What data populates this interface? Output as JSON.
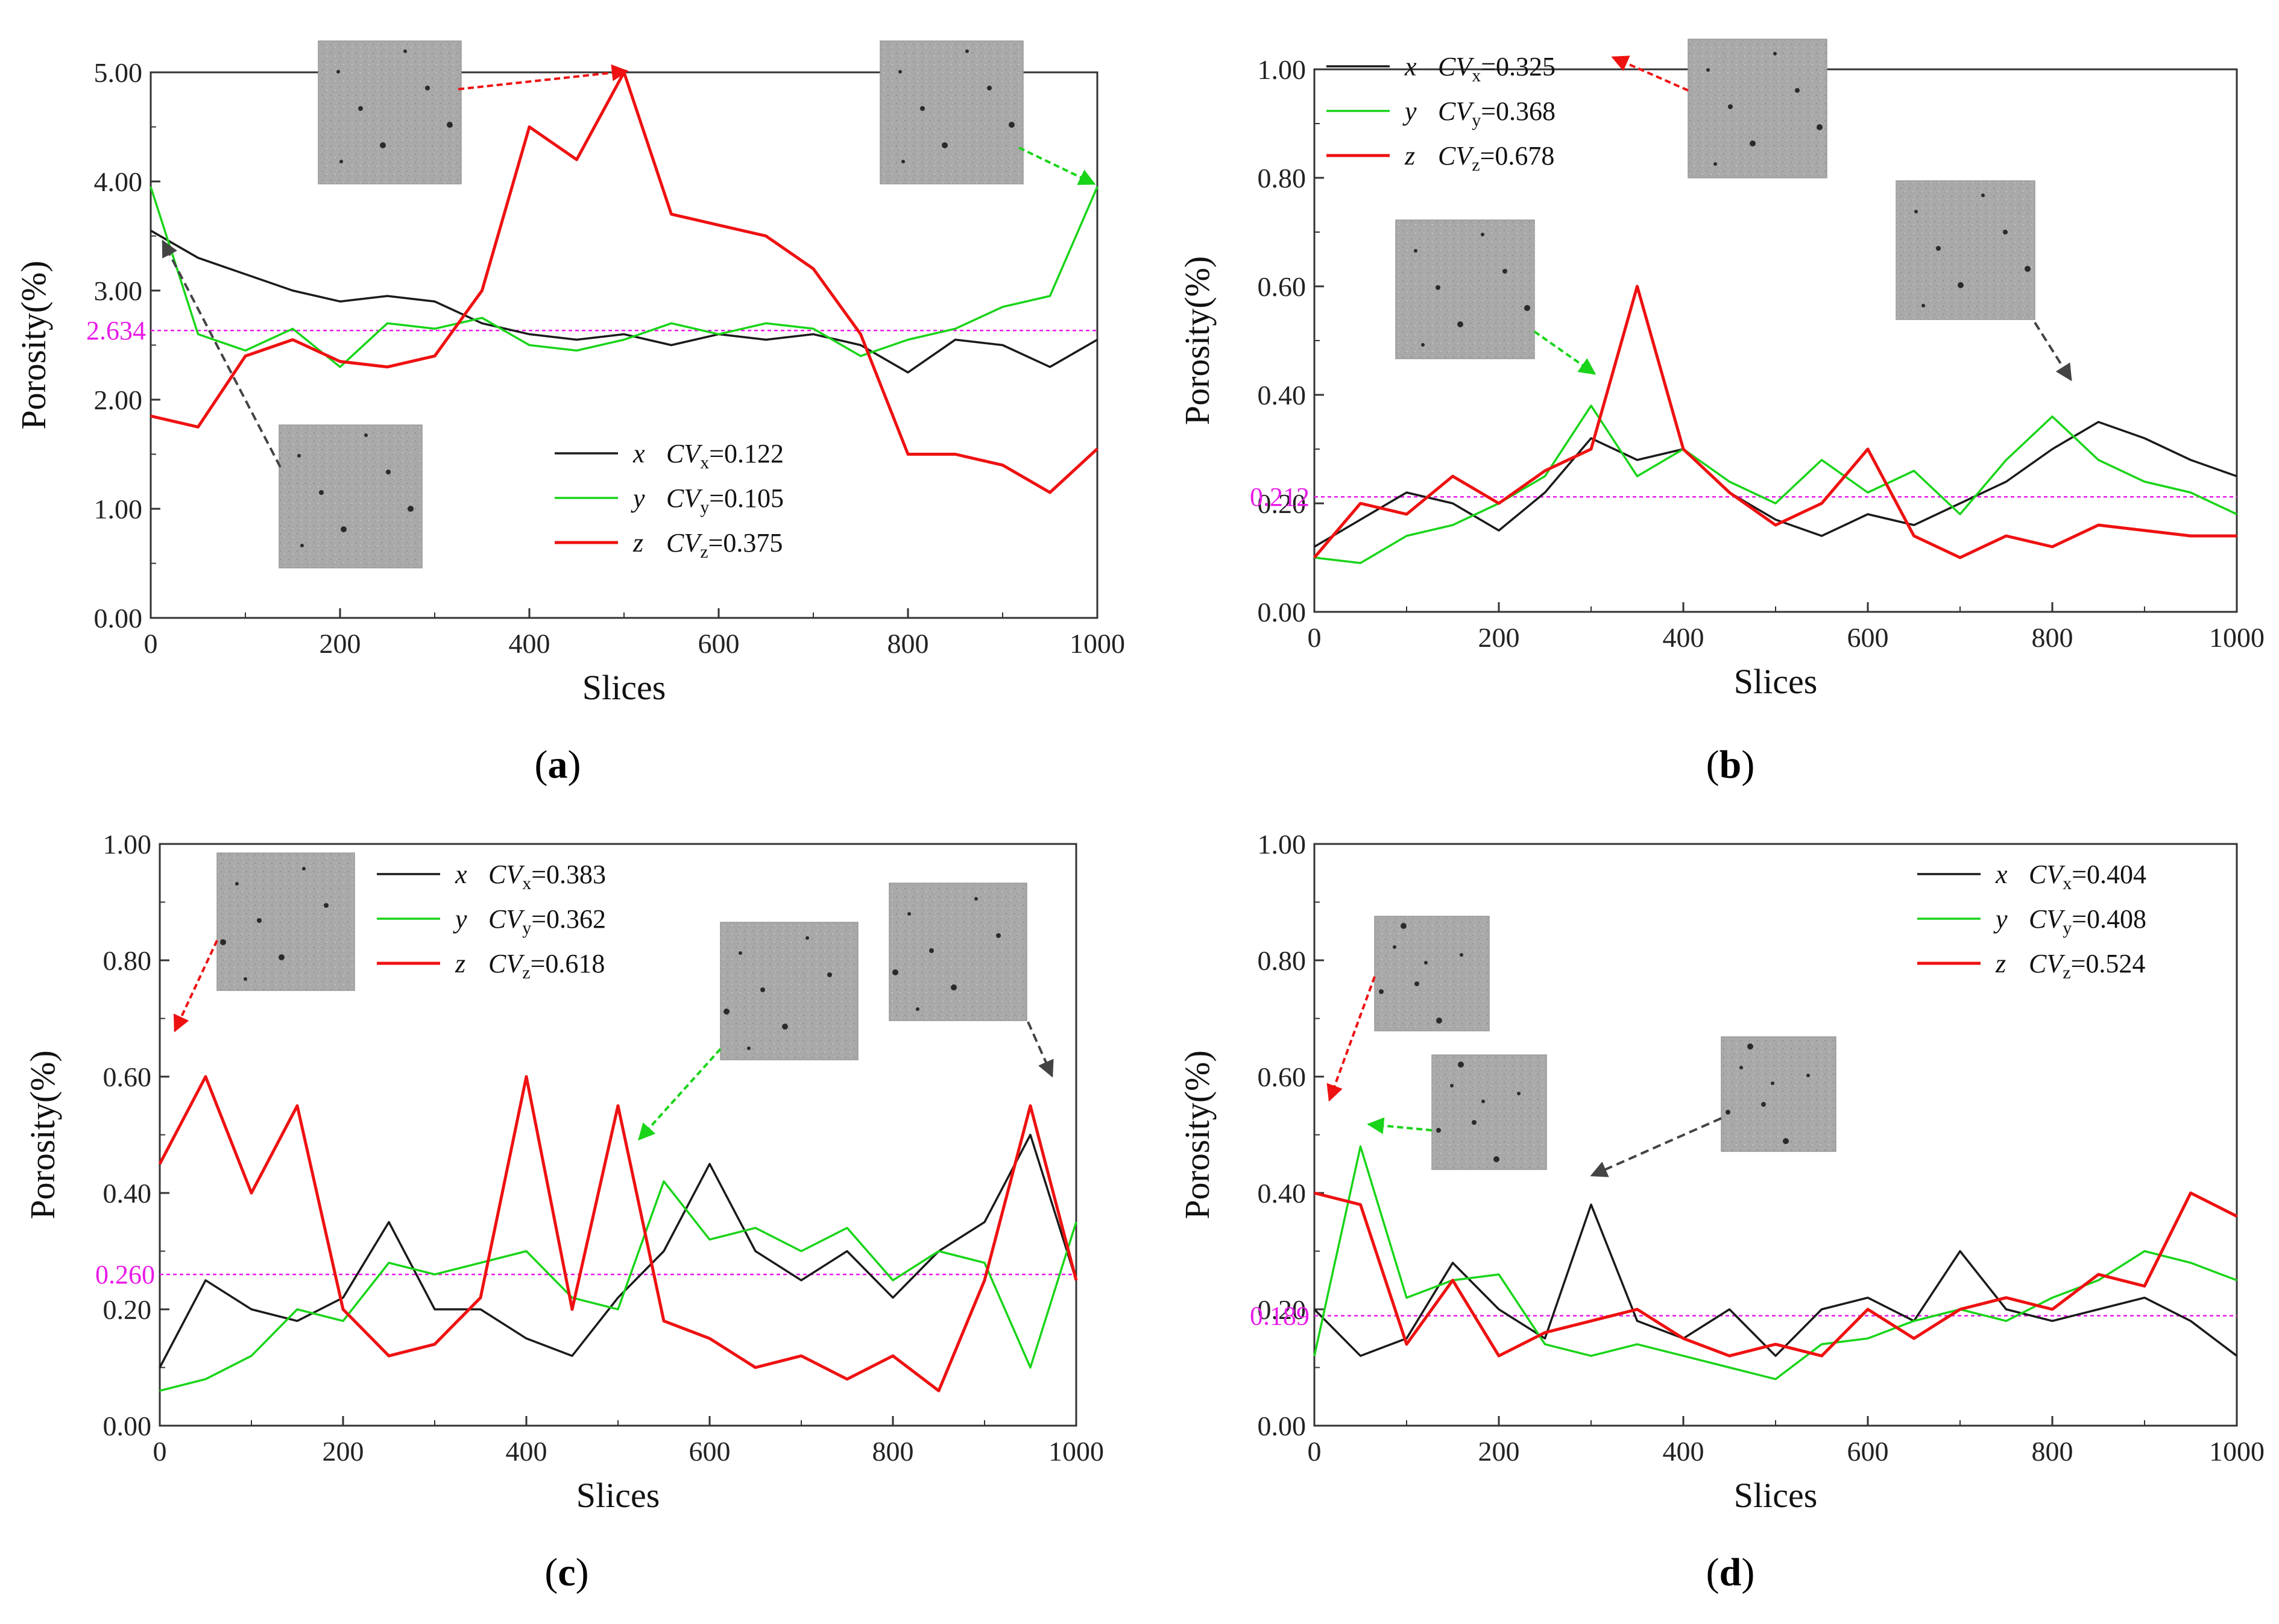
{
  "figure": {
    "panels": [
      {
        "id": "a",
        "label": "a"
      },
      {
        "id": "b",
        "label": "b"
      },
      {
        "id": "c",
        "label": "c"
      },
      {
        "id": "d",
        "label": "d"
      }
    ]
  },
  "colors": {
    "x": "#1a1a1a",
    "y": "#19d419",
    "z": "#ee1111",
    "mean": "#e81be8"
  },
  "chart_data": [
    {
      "type": "line",
      "panel": "a",
      "xlabel": "Slices",
      "ylabel": "Porosity(%)",
      "xlim": [
        0,
        1000
      ],
      "ylim": [
        0,
        5
      ],
      "xticks": [
        "0",
        "200",
        "400",
        "600",
        "800",
        "1000"
      ],
      "yticks": [
        "0.00",
        "1.00",
        "2.00",
        "3.00",
        "4.00",
        "5.00"
      ],
      "mean": {
        "value": 2.634,
        "label": "2.634"
      },
      "legend_position": "bottom-right",
      "x": [
        0,
        50,
        100,
        150,
        200,
        250,
        300,
        350,
        400,
        450,
        500,
        550,
        600,
        650,
        700,
        750,
        800,
        850,
        900,
        950,
        1000
      ],
      "series": [
        {
          "key": "x",
          "letter": "x",
          "cv_sub": "x",
          "cv_value": "=0.122",
          "values": [
            3.55,
            3.3,
            3.15,
            3.0,
            2.9,
            2.95,
            2.9,
            2.7,
            2.6,
            2.55,
            2.6,
            2.5,
            2.6,
            2.55,
            2.6,
            2.5,
            2.25,
            2.55,
            2.5,
            2.3,
            2.55
          ]
        },
        {
          "key": "y",
          "letter": "y",
          "cv_sub": "y",
          "cv_value": "=0.105",
          "values": [
            3.95,
            2.6,
            2.45,
            2.65,
            2.3,
            2.7,
            2.65,
            2.75,
            2.5,
            2.45,
            2.55,
            2.7,
            2.6,
            2.7,
            2.65,
            2.4,
            2.55,
            2.65,
            2.85,
            2.95,
            3.95
          ]
        },
        {
          "key": "z",
          "letter": "z",
          "cv_sub": "z",
          "cv_value": "=0.375",
          "values": [
            1.85,
            1.75,
            2.4,
            2.55,
            2.35,
            2.3,
            2.4,
            3.0,
            4.5,
            4.2,
            5.0,
            3.7,
            3.6,
            3.5,
            3.2,
            2.6,
            1.5,
            1.5,
            1.4,
            1.15,
            1.55
          ]
        }
      ]
    },
    {
      "type": "line",
      "panel": "b",
      "xlabel": "Slices",
      "ylabel": "Porosity(%)",
      "xlim": [
        0,
        1000
      ],
      "ylim": [
        0,
        1
      ],
      "xticks": [
        "0",
        "200",
        "400",
        "600",
        "800",
        "1000"
      ],
      "yticks": [
        "0.00",
        "0.20",
        "0.40",
        "0.60",
        "0.80",
        "1.00"
      ],
      "mean": {
        "value": 0.212,
        "label": "0.212"
      },
      "legend_position": "top-left",
      "x": [
        0,
        50,
        100,
        150,
        200,
        250,
        300,
        350,
        400,
        450,
        500,
        550,
        600,
        650,
        700,
        750,
        800,
        850,
        900,
        950,
        1000
      ],
      "series": [
        {
          "key": "x",
          "letter": "x",
          "cv_sub": "x",
          "cv_value": "=0.325",
          "values": [
            0.12,
            0.17,
            0.22,
            0.2,
            0.15,
            0.22,
            0.32,
            0.28,
            0.3,
            0.22,
            0.17,
            0.14,
            0.18,
            0.16,
            0.2,
            0.24,
            0.3,
            0.35,
            0.32,
            0.28,
            0.25
          ]
        },
        {
          "key": "y",
          "letter": "y",
          "cv_sub": "y",
          "cv_value": "=0.368",
          "values": [
            0.1,
            0.09,
            0.14,
            0.16,
            0.2,
            0.25,
            0.38,
            0.25,
            0.3,
            0.24,
            0.2,
            0.28,
            0.22,
            0.26,
            0.18,
            0.28,
            0.36,
            0.28,
            0.24,
            0.22,
            0.18
          ]
        },
        {
          "key": "z",
          "letter": "z",
          "cv_sub": "z",
          "cv_value": "=0.678",
          "values": [
            0.1,
            0.2,
            0.18,
            0.25,
            0.2,
            0.26,
            0.3,
            0.6,
            0.3,
            0.22,
            0.16,
            0.2,
            0.3,
            0.14,
            0.1,
            0.14,
            0.12,
            0.16,
            0.15,
            0.14,
            0.14
          ]
        }
      ]
    },
    {
      "type": "line",
      "panel": "c",
      "xlabel": "Slices",
      "ylabel": "Porosity(%)",
      "xlim": [
        0,
        1000
      ],
      "ylim": [
        0,
        1
      ],
      "xticks": [
        "0",
        "200",
        "400",
        "600",
        "800",
        "1000"
      ],
      "yticks": [
        "0.00",
        "0.20",
        "0.40",
        "0.60",
        "0.80",
        "1.00"
      ],
      "mean": {
        "value": 0.26,
        "label": "0.260"
      },
      "legend_position": "top-center",
      "x": [
        0,
        50,
        100,
        150,
        200,
        250,
        300,
        350,
        400,
        450,
        500,
        550,
        600,
        650,
        700,
        750,
        800,
        850,
        900,
        950,
        1000
      ],
      "series": [
        {
          "key": "x",
          "letter": "x",
          "cv_sub": "x",
          "cv_value": "=0.383",
          "values": [
            0.1,
            0.25,
            0.2,
            0.18,
            0.22,
            0.35,
            0.2,
            0.2,
            0.15,
            0.12,
            0.22,
            0.3,
            0.45,
            0.3,
            0.25,
            0.3,
            0.22,
            0.3,
            0.35,
            0.5,
            0.25
          ]
        },
        {
          "key": "y",
          "letter": "y",
          "cv_sub": "y",
          "cv_value": "=0.362",
          "values": [
            0.06,
            0.08,
            0.12,
            0.2,
            0.18,
            0.28,
            0.26,
            0.28,
            0.3,
            0.22,
            0.2,
            0.42,
            0.32,
            0.34,
            0.3,
            0.34,
            0.25,
            0.3,
            0.28,
            0.1,
            0.35
          ]
        },
        {
          "key": "z",
          "letter": "z",
          "cv_sub": "z",
          "cv_value": "=0.618",
          "values": [
            0.45,
            0.6,
            0.4,
            0.55,
            0.2,
            0.12,
            0.14,
            0.22,
            0.6,
            0.2,
            0.55,
            0.18,
            0.15,
            0.1,
            0.12,
            0.08,
            0.12,
            0.06,
            0.25,
            0.55,
            0.25
          ]
        }
      ]
    },
    {
      "type": "line",
      "panel": "d",
      "xlabel": "Slices",
      "ylabel": "Porosity(%)",
      "xlim": [
        0,
        1000
      ],
      "ylim": [
        0,
        1
      ],
      "xticks": [
        "0",
        "200",
        "400",
        "600",
        "800",
        "1000"
      ],
      "yticks": [
        "0.00",
        "0.20",
        "0.40",
        "0.60",
        "0.80",
        "1.00"
      ],
      "mean": {
        "value": 0.189,
        "label": "0.189"
      },
      "legend_position": "top-right",
      "x": [
        0,
        50,
        100,
        150,
        200,
        250,
        300,
        350,
        400,
        450,
        500,
        550,
        600,
        650,
        700,
        750,
        800,
        850,
        900,
        950,
        1000
      ],
      "series": [
        {
          "key": "x",
          "letter": "x",
          "cv_sub": "x",
          "cv_value": "=0.404",
          "values": [
            0.2,
            0.12,
            0.15,
            0.28,
            0.2,
            0.15,
            0.38,
            0.18,
            0.15,
            0.2,
            0.12,
            0.2,
            0.22,
            0.18,
            0.3,
            0.2,
            0.18,
            0.2,
            0.22,
            0.18,
            0.12
          ]
        },
        {
          "key": "y",
          "letter": "y",
          "cv_sub": "y",
          "cv_value": "=0.408",
          "values": [
            0.12,
            0.48,
            0.22,
            0.25,
            0.26,
            0.14,
            0.12,
            0.14,
            0.12,
            0.1,
            0.08,
            0.14,
            0.15,
            0.18,
            0.2,
            0.18,
            0.22,
            0.25,
            0.3,
            0.28,
            0.25
          ]
        },
        {
          "key": "z",
          "letter": "z",
          "cv_sub": "z",
          "cv_value": "=0.524",
          "values": [
            0.4,
            0.38,
            0.14,
            0.25,
            0.12,
            0.16,
            0.18,
            0.2,
            0.15,
            0.12,
            0.14,
            0.12,
            0.2,
            0.15,
            0.2,
            0.22,
            0.2,
            0.26,
            0.24,
            0.4,
            0.36
          ]
        }
      ]
    }
  ]
}
